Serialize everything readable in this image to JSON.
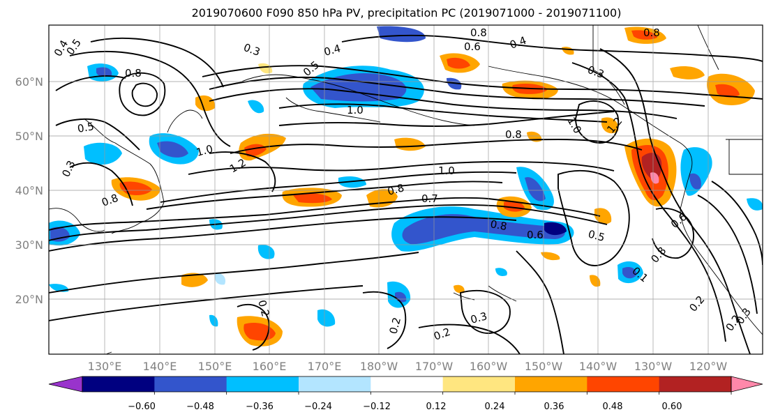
{
  "title": "2019070600 F090 850 hPa PV, precipitation PC (2019071000 - 2019071100)",
  "lat_labels": [
    "20°N",
    "30°N",
    "40°N",
    "50°N",
    "60°N"
  ],
  "lon_labels": [
    "130°E",
    "140°E",
    "150°E",
    "160°E",
    "170°E",
    "180°W",
    "170°W",
    "160°W",
    "150°W",
    "140°W",
    "130°W",
    "120°W"
  ],
  "colorbar": {
    "colors": [
      "#9933cc",
      "#000080",
      "#3355cc",
      "#00bfff",
      "#b3e5ff",
      "#ffffff",
      "#ffe680",
      "#ffa500",
      "#ff4500",
      "#b22222",
      "#ff88aa"
    ],
    "tick_labels": [
      "−0.60",
      "−0.48",
      "−0.36",
      "−0.24",
      "−0.12",
      "0.12",
      "0.24",
      "0.36",
      "0.48",
      "0.60"
    ]
  },
  "contour_labels": [
    "0.4",
    "0.5",
    "0.3",
    "0.4",
    "0.5",
    "0.8",
    "1.0",
    "0.8",
    "0.6",
    "0.4",
    "0.3",
    "1.0",
    "0.8",
    "1.2",
    "0.5",
    "0.8",
    "1.0",
    "1.2",
    "0.3",
    "0.8",
    "1.0",
    "0.8",
    "0.7",
    "0.8",
    "0.6",
    "0.5",
    "0.6",
    "0.8",
    "0.1",
    "0.2",
    "0.2",
    "0.3",
    "0.2",
    "0.2",
    "0.3",
    "0.2"
  ]
}
